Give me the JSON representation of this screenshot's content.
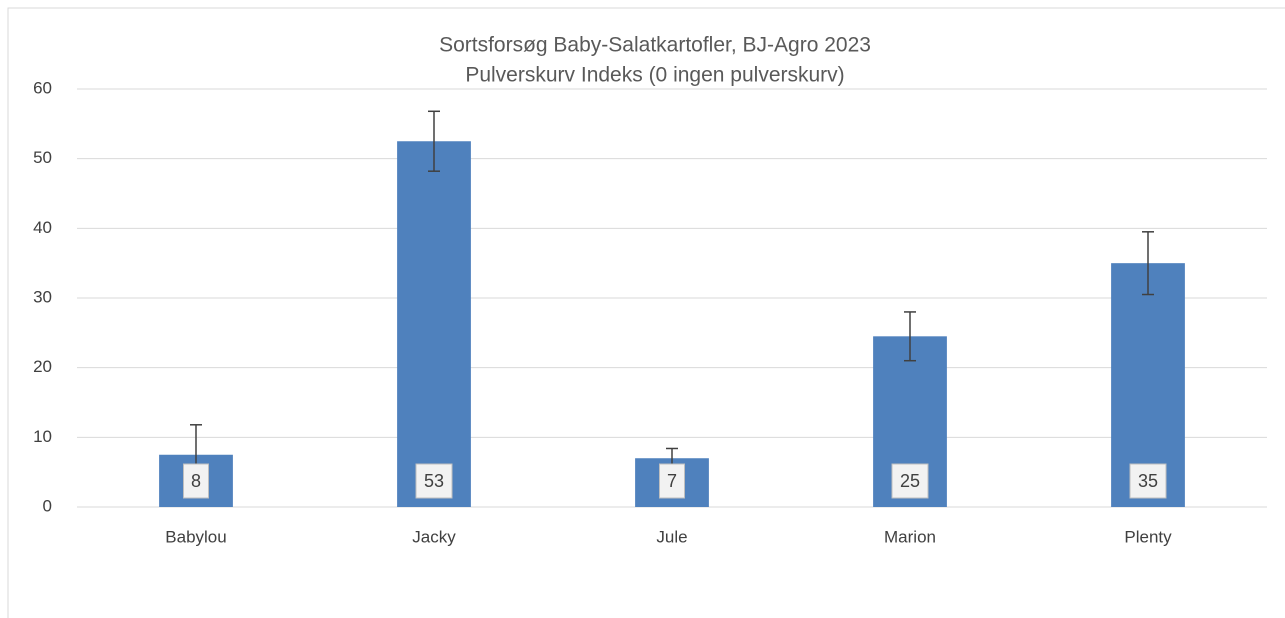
{
  "chart_data": {
    "type": "bar",
    "title": "Sortsforsøg Baby-Salatkartofler, BJ-Agro 2023",
    "subtitle": "Pulverskurv Indeks (0 ingen pulverskurv)",
    "categories": [
      "Babylou",
      "Jacky",
      "Jule",
      "Marion",
      "Plenty"
    ],
    "values": [
      7.5,
      52.5,
      7,
      24.5,
      35
    ],
    "value_labels": [
      "8",
      "53",
      "7",
      "25",
      "35"
    ],
    "errors": [
      4.3,
      4.3,
      1.4,
      3.5,
      4.5
    ],
    "color": "#4f81bd",
    "ylim": [
      0,
      60
    ],
    "yticks": [
      0,
      10,
      20,
      30,
      40,
      50,
      60
    ],
    "grid": true
  }
}
